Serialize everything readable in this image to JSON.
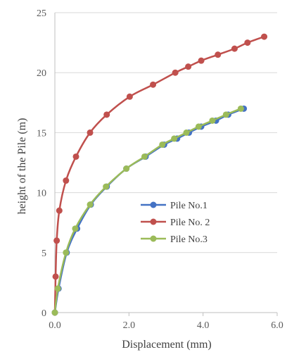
{
  "chart_data": {
    "type": "scatter",
    "title": "",
    "xlabel": "Displacement (mm)",
    "ylabel": "height of the Pile (m)",
    "xlim": [
      0,
      6
    ],
    "ylim": [
      0,
      25
    ],
    "xticks": [
      0,
      2,
      4,
      6
    ],
    "xtick_labels": [
      "0.0",
      "2.0",
      "4.0",
      "6.0"
    ],
    "yticks": [
      0,
      5,
      10,
      15,
      20,
      25
    ],
    "ytick_labels": [
      "0",
      "5",
      "10",
      "15",
      "20",
      "25"
    ],
    "grid": "horizontal",
    "legend_position": "center-right",
    "series": [
      {
        "name": "Pile No.1",
        "color": "#4472C4",
        "points": [
          [
            0,
            0
          ],
          [
            0.1,
            2
          ],
          [
            0.32,
            5
          ],
          [
            0.6,
            7
          ],
          [
            0.97,
            9
          ],
          [
            1.4,
            10.5
          ],
          [
            1.93,
            12
          ],
          [
            2.45,
            13
          ],
          [
            2.95,
            14
          ],
          [
            3.3,
            14.5
          ],
          [
            3.62,
            15
          ],
          [
            3.95,
            15.5
          ],
          [
            4.35,
            16
          ],
          [
            4.68,
            16.5
          ],
          [
            5.1,
            17
          ]
        ]
      },
      {
        "name": "Pile No. 2",
        "color": "#C0504D",
        "points": [
          [
            0,
            0
          ],
          [
            0.02,
            3
          ],
          [
            0.05,
            6
          ],
          [
            0.12,
            8.5
          ],
          [
            0.3,
            11
          ],
          [
            0.57,
            13
          ],
          [
            0.95,
            15
          ],
          [
            1.4,
            16.5
          ],
          [
            2.02,
            18
          ],
          [
            2.65,
            19
          ],
          [
            3.25,
            20
          ],
          [
            3.6,
            20.5
          ],
          [
            3.95,
            21
          ],
          [
            4.4,
            21.5
          ],
          [
            4.85,
            22
          ],
          [
            5.2,
            22.5
          ],
          [
            5.65,
            23
          ]
        ]
      },
      {
        "name": "Pile No.3",
        "color": "#9BBB59",
        "points": [
          [
            0,
            0
          ],
          [
            0.08,
            2
          ],
          [
            0.3,
            5
          ],
          [
            0.55,
            7
          ],
          [
            0.95,
            9
          ],
          [
            1.38,
            10.5
          ],
          [
            1.93,
            12
          ],
          [
            2.42,
            13
          ],
          [
            2.9,
            14
          ],
          [
            3.22,
            14.5
          ],
          [
            3.55,
            15
          ],
          [
            3.88,
            15.5
          ],
          [
            4.25,
            16
          ],
          [
            4.62,
            16.5
          ],
          [
            5.02,
            17
          ]
        ]
      }
    ]
  }
}
